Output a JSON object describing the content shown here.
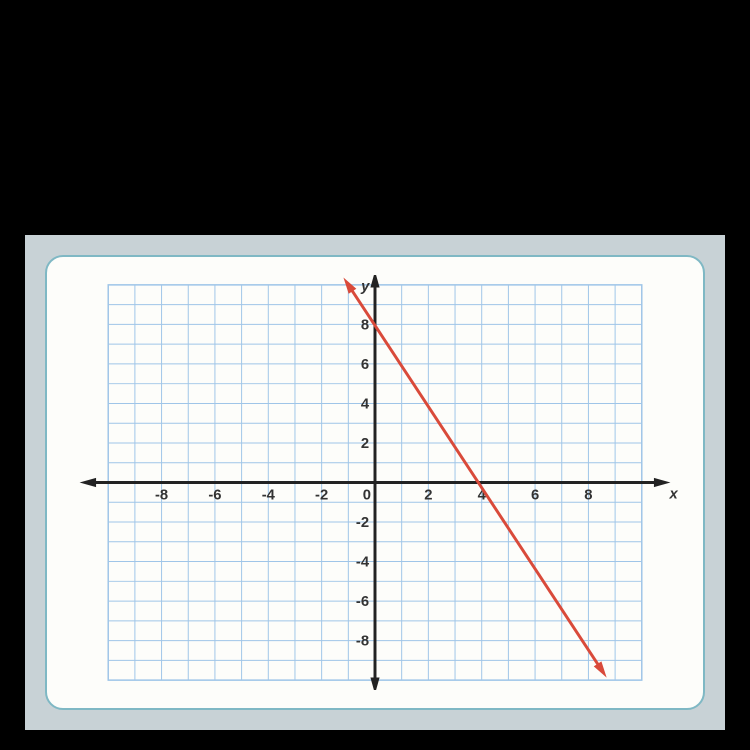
{
  "chart": {
    "type": "line",
    "xlim": [
      -10,
      10
    ],
    "ylim": [
      -10,
      10
    ],
    "grid_color": "#9fc5e8",
    "background_color": "#fdfdfa",
    "axis_color": "#222222",
    "line_color": "#d94a3a",
    "line_width": 3,
    "axis_width": 3,
    "x_ticks": [
      -8,
      -6,
      -4,
      -2,
      0,
      2,
      4,
      6,
      8
    ],
    "y_ticks": [
      -8,
      -6,
      -4,
      -2,
      2,
      4,
      6,
      8
    ],
    "x_label": "x",
    "y_label": "y",
    "label_fontsize": 15,
    "line_points": {
      "x1": -1,
      "y1": 10,
      "x2": 8.5,
      "y2": -9.5
    },
    "tick_label_color": "#333333"
  }
}
